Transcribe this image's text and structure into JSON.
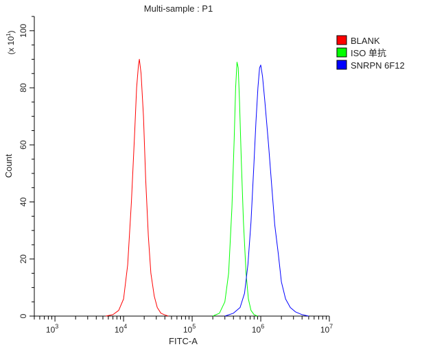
{
  "chart_data": {
    "type": "line",
    "title": "Multi-sample : P1",
    "xlabel": "FITC-A",
    "ylabel": "Count",
    "y_multiplier_label": "(x 10",
    "y_multiplier_exp": "1",
    "y_multiplier_close": ")",
    "x_scale": "log",
    "xlim": [
      500,
      10000000
    ],
    "ylim": [
      0,
      105
    ],
    "x_ticks": [
      {
        "value": 1000,
        "base": "10",
        "exp": "3"
      },
      {
        "value": 10000,
        "base": "10",
        "exp": "4"
      },
      {
        "value": 100000,
        "base": "10",
        "exp": "5"
      },
      {
        "value": 1000000,
        "base": "10",
        "exp": "6"
      },
      {
        "value": 10000000,
        "base": "10",
        "exp": "7"
      }
    ],
    "y_ticks": [
      "0",
      "20",
      "40",
      "60",
      "80",
      "100"
    ],
    "grid": false,
    "legend_position": "top-right",
    "series": [
      {
        "name": "BLANK",
        "color": "#ff0000",
        "x": [
          5500,
          7000,
          8500,
          10000,
          11500,
          13000,
          14500,
          15500,
          16500,
          17000,
          18000,
          19500,
          21000,
          23000,
          25000,
          28000,
          31000,
          35000,
          40000,
          45000
        ],
        "y": [
          0,
          0.5,
          2,
          6,
          18,
          40,
          64,
          80,
          88,
          90,
          85,
          70,
          48,
          28,
          15,
          7,
          3,
          1,
          0.4,
          0
        ]
      },
      {
        "name": "ISO 单抗",
        "color": "#00ff00",
        "x": [
          200000,
          250000,
          300000,
          340000,
          380000,
          410000,
          430000,
          450000,
          470000,
          490000,
          520000,
          560000,
          610000,
          660000,
          720000,
          800000,
          900000
        ],
        "y": [
          0,
          1,
          5,
          15,
          38,
          62,
          80,
          89,
          87,
          75,
          55,
          33,
          15,
          6,
          2,
          0.5,
          0
        ]
      },
      {
        "name": "SNRPN 6F12",
        "color": "#0000ff",
        "x": [
          300000,
          400000,
          500000,
          580000,
          650000,
          720000,
          790000,
          850000,
          910000,
          960000,
          1000000,
          1060000,
          1150000,
          1300000,
          1450000,
          1600000,
          1800000,
          2000000,
          2300000,
          2700000,
          3200000,
          4000000,
          5000000
        ],
        "y": [
          0,
          1,
          3,
          8,
          18,
          33,
          52,
          68,
          80,
          87,
          88,
          84,
          75,
          60,
          45,
          32,
          22,
          12,
          6,
          3,
          1.5,
          0.5,
          0
        ]
      }
    ]
  }
}
